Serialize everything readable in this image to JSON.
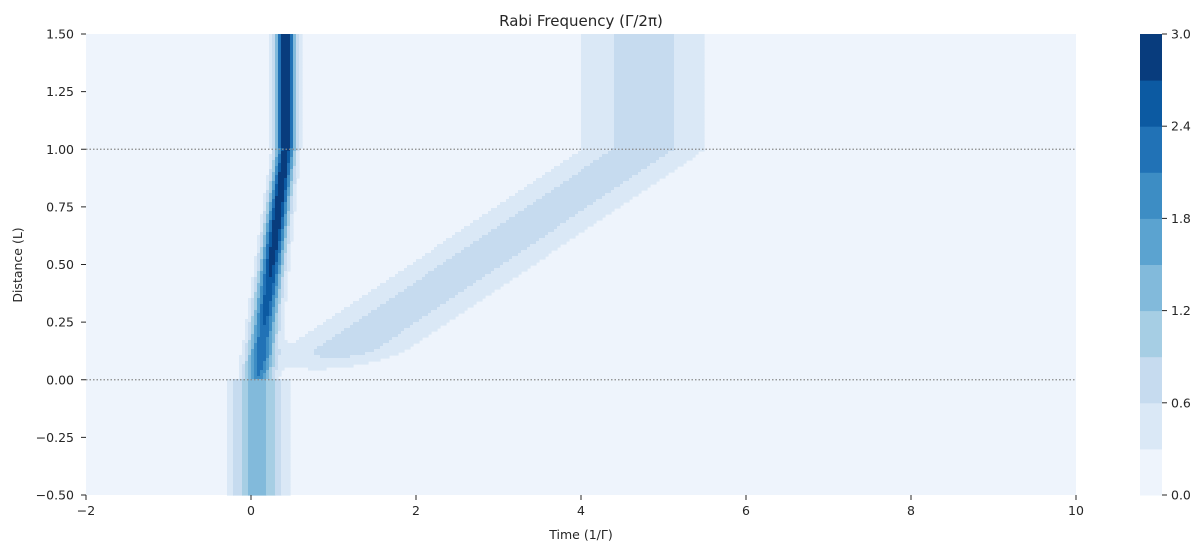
{
  "chart_data": {
    "type": "heatmap",
    "subtype": "filled-contour",
    "title": "Rabi Frequency (Γ/2π)",
    "xlabel": "Time (1/Γ)",
    "ylabel": "Distance (L)",
    "xlim": [
      -2,
      10
    ],
    "ylim": [
      -0.5,
      1.5
    ],
    "x_ticks": [
      -2,
      0,
      2,
      4,
      6,
      8,
      10
    ],
    "x_tick_labels": [
      "−2",
      "0",
      "2",
      "4",
      "6",
      "8",
      "10"
    ],
    "y_ticks": [
      -0.5,
      -0.25,
      0.0,
      0.25,
      0.5,
      0.75,
      1.0,
      1.25,
      1.5
    ],
    "y_tick_labels": [
      "−0.50",
      "−0.25",
      "0.00",
      "0.25",
      "0.50",
      "0.75",
      "1.00",
      "1.25",
      "1.50"
    ],
    "grid": false,
    "colormap": "Blues",
    "background_color": "#eef4fc",
    "reference_lines": [
      {
        "axis": "y",
        "value": 0.0,
        "style": "dotted",
        "color": "#888888"
      },
      {
        "axis": "y",
        "value": 1.0,
        "style": "dotted",
        "color": "#888888"
      }
    ],
    "colorbar": {
      "min": 0.0,
      "max": 3.0,
      "levels": [
        0.0,
        0.3,
        0.6,
        0.9,
        1.2,
        1.5,
        1.8,
        2.1,
        2.4,
        2.7,
        3.0
      ],
      "tick_values": [
        0.0,
        0.6,
        1.2,
        1.8,
        2.4,
        3.0
      ],
      "tick_labels": [
        "0.0",
        "0.6",
        "1.2",
        "1.8",
        "2.4",
        "3.0"
      ],
      "colors": [
        "#eef4fc",
        "#dae8f6",
        "#c6dbef",
        "#a6cee4",
        "#82badb",
        "#5ba3d0",
        "#3d8dc4",
        "#2172b6",
        "#0c5aa2",
        "#083c7d"
      ]
    },
    "pulses": [
      {
        "name": "",
        "description": "control pulse, incoming below y=0, travels slowly through medium",
        "peak_before": 1.4,
        "peak_inside": 3.0,
        "width_time": 0.32,
        "time_at_y0": 0.08,
        "time_at_y1": 0.42,
        "compressed_inside": true
      },
      {
        "name": "",
        "description": "weak pulse exiting medium",
        "peak": 0.75,
        "width_time": 0.55,
        "time_at_y0": 0.6,
        "time_at_y1": 4.75,
        "visible_from_y": 0.05
      }
    ]
  }
}
